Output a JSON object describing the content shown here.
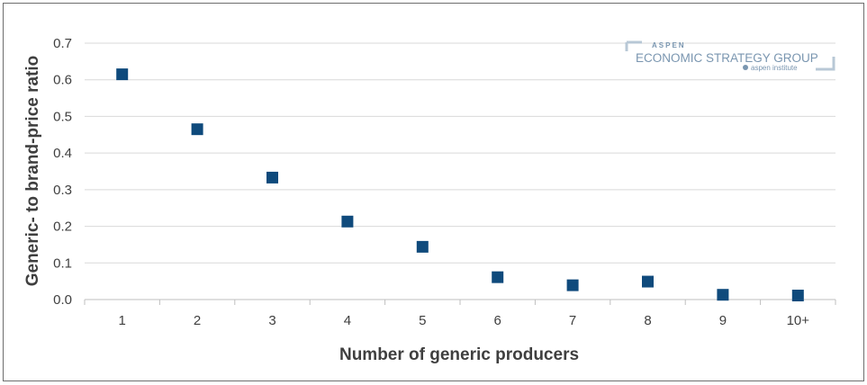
{
  "chart_data": {
    "type": "scatter",
    "title": "",
    "xlabel": "Number of generic producers",
    "ylabel": "Generic- to brand-price ratio",
    "categories": [
      "1",
      "2",
      "3",
      "4",
      "5",
      "6",
      "7",
      "8",
      "9",
      "10+"
    ],
    "values": [
      0.615,
      0.465,
      0.333,
      0.213,
      0.144,
      0.061,
      0.039,
      0.049,
      0.013,
      0.011
    ],
    "yticks": [
      "0.0",
      "0.1",
      "0.2",
      "0.3",
      "0.4",
      "0.5",
      "0.6",
      "0.7"
    ],
    "ylim": [
      0,
      0.7
    ],
    "grid": true,
    "marker_color": "#0f4a7c",
    "grid_color": "#d9d9d9"
  },
  "logo": {
    "top": "ASPEN",
    "main": "ECONOMIC STRATEGY GROUP",
    "sub": "aspen institute",
    "color": "#7a96b0"
  }
}
